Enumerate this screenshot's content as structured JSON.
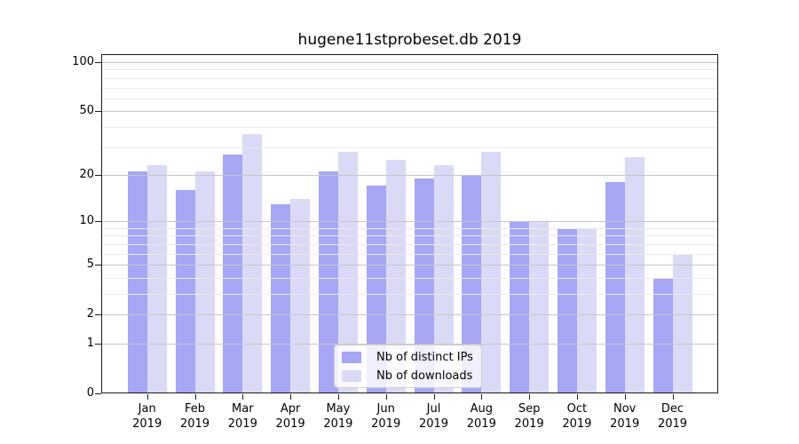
{
  "figure": {
    "background": "#ffffff"
  },
  "chart_data": {
    "type": "bar",
    "title": "hugene11stprobeset.db 2019",
    "categories": [
      "Jan",
      "Feb",
      "Mar",
      "Apr",
      "May",
      "Jun",
      "Jul",
      "Aug",
      "Sep",
      "Oct",
      "Nov",
      "Dec"
    ],
    "x_year_label": "2019",
    "series": [
      {
        "name": "Nb of distinct IPs",
        "color": "#a6a6f4",
        "values": [
          21,
          16,
          27,
          13,
          21,
          17,
          19,
          20,
          10,
          9,
          18,
          4
        ]
      },
      {
        "name": "Nb of downloads",
        "color": "#dadaf7",
        "values": [
          23,
          21,
          36,
          14,
          28,
          25,
          23,
          28,
          10,
          9,
          26,
          6
        ]
      }
    ],
    "yscale": "log1p",
    "ylim": [
      0,
      112
    ],
    "yticks": [
      0,
      1,
      2,
      5,
      10,
      20,
      50,
      100
    ],
    "yminorticks": [
      3,
      4,
      6,
      7,
      8,
      9,
      30,
      40,
      60,
      70,
      80,
      90
    ],
    "xlabel": "",
    "ylabel": "",
    "grid": {
      "orientation": "horizontal",
      "major_color": "#c6c6c6",
      "minor_color": "#ebebeb",
      "drawn_above_bars": true
    },
    "axis_color": "#1a1a1a",
    "legend": {
      "position": "inside-bottom-center",
      "border_color": "#cfcfcf",
      "background": "rgba(255,255,255,0.82)"
    }
  }
}
